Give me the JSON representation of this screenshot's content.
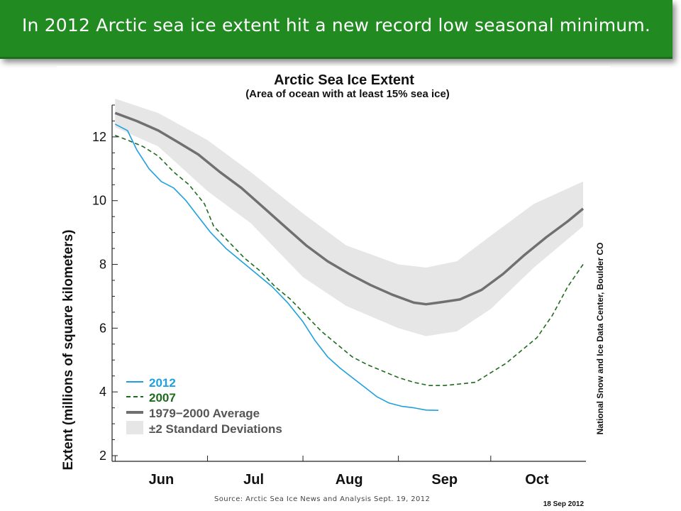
{
  "slide": {
    "title": "In 2012 Arctic sea ice extent hit a new record low seasonal minimum.",
    "source": "Source:  Arctic Sea Ice News and Analysis  Sept. 19, 2012"
  },
  "colors": {
    "banner": "#218a21",
    "series_2012": "#1ea0e0",
    "series_2007": "#1e6b1e",
    "average": "#707070",
    "std_band": "#e6e6e6"
  },
  "chart_data": {
    "type": "line",
    "title": "Arctic Sea Ice Extent",
    "subtitle": "(Area of ocean with at least 15% sea ice)",
    "ylabel": "Extent (millions of square kilometers)",
    "xlabel": "",
    "ylim": [
      2,
      13
    ],
    "xlim": [
      "May 31",
      "Oct 31"
    ],
    "yticks": [
      "2",
      "4",
      "6",
      "8",
      "10",
      "12"
    ],
    "month_labels": [
      "Jun",
      "Jul",
      "Aug",
      "Sep",
      "Oct"
    ],
    "right_caption": "National Snow and Ice Data Center, Boulder CO",
    "date_caption": "18 Sep 2012",
    "legend_position": "lower-left",
    "grid": false,
    "series": [
      {
        "name": "2012",
        "style": "solid",
        "points": [
          [
            "Jun 1",
            12.4
          ],
          [
            "Jun 5",
            12.2
          ],
          [
            "Jun 8",
            11.6
          ],
          [
            "Jun 12",
            11.0
          ],
          [
            "Jun 16",
            10.6
          ],
          [
            "Jun 20",
            10.4
          ],
          [
            "Jun 24",
            10.0
          ],
          [
            "Jun 28",
            9.5
          ],
          [
            "Jul 2",
            9.0
          ],
          [
            "Jul 7",
            8.5
          ],
          [
            "Jul 12",
            8.1
          ],
          [
            "Jul 17",
            7.7
          ],
          [
            "Jul 22",
            7.3
          ],
          [
            "Jul 27",
            6.8
          ],
          [
            "Aug 1",
            6.2
          ],
          [
            "Aug 5",
            5.6
          ],
          [
            "Aug 9",
            5.1
          ],
          [
            "Aug 13",
            4.75
          ],
          [
            "Aug 17",
            4.45
          ],
          [
            "Aug 21",
            4.15
          ],
          [
            "Aug 25",
            3.85
          ],
          [
            "Aug 29",
            3.65
          ],
          [
            "Sep 2",
            3.55
          ],
          [
            "Sep 6",
            3.5
          ],
          [
            "Sep 10",
            3.43
          ],
          [
            "Sep 14",
            3.42
          ]
        ]
      },
      {
        "name": "2007",
        "style": "dashed",
        "points": [
          [
            "Jun 1",
            12.05
          ],
          [
            "Jun 5",
            11.9
          ],
          [
            "Jun 10",
            11.7
          ],
          [
            "Jun 15",
            11.4
          ],
          [
            "Jun 20",
            10.9
          ],
          [
            "Jun 25",
            10.5
          ],
          [
            "Jun 30",
            9.9
          ],
          [
            "Jul 3",
            9.2
          ],
          [
            "Jul 8",
            8.7
          ],
          [
            "Jul 13",
            8.2
          ],
          [
            "Jul 18",
            7.8
          ],
          [
            "Jul 23",
            7.3
          ],
          [
            "Jul 28",
            6.9
          ],
          [
            "Aug 2",
            6.4
          ],
          [
            "Aug 7",
            5.9
          ],
          [
            "Aug 12",
            5.5
          ],
          [
            "Aug 17",
            5.1
          ],
          [
            "Aug 22",
            4.85
          ],
          [
            "Aug 27",
            4.65
          ],
          [
            "Sep 1",
            4.45
          ],
          [
            "Sep 6",
            4.3
          ],
          [
            "Sep 11",
            4.2
          ],
          [
            "Sep 16",
            4.2
          ],
          [
            "Sep 21",
            4.25
          ],
          [
            "Sep 26",
            4.3
          ],
          [
            "Oct 1",
            4.6
          ],
          [
            "Oct 6",
            4.9
          ],
          [
            "Oct 11",
            5.3
          ],
          [
            "Oct 16",
            5.7
          ],
          [
            "Oct 21",
            6.4
          ],
          [
            "Oct 26",
            7.3
          ],
          [
            "Oct 31",
            8.0
          ]
        ]
      },
      {
        "name": "1979−2000 Average",
        "style": "thick",
        "points": [
          [
            "Jun 1",
            12.75
          ],
          [
            "Jun 8",
            12.5
          ],
          [
            "Jun 15",
            12.2
          ],
          [
            "Jun 22",
            11.8
          ],
          [
            "Jun 28",
            11.45
          ],
          [
            "Jul 5",
            10.9
          ],
          [
            "Jul 12",
            10.4
          ],
          [
            "Jul 19",
            9.8
          ],
          [
            "Jul 26",
            9.2
          ],
          [
            "Aug 2",
            8.6
          ],
          [
            "Aug 9",
            8.1
          ],
          [
            "Aug 16",
            7.7
          ],
          [
            "Aug 23",
            7.35
          ],
          [
            "Aug 30",
            7.05
          ],
          [
            "Sep 6",
            6.8
          ],
          [
            "Sep 10",
            6.75
          ],
          [
            "Sep 14",
            6.8
          ],
          [
            "Sep 21",
            6.9
          ],
          [
            "Sep 28",
            7.2
          ],
          [
            "Oct 5",
            7.7
          ],
          [
            "Oct 12",
            8.3
          ],
          [
            "Oct 19",
            8.85
          ],
          [
            "Oct 26",
            9.35
          ],
          [
            "Oct 31",
            9.75
          ]
        ]
      }
    ],
    "band": {
      "name": "±2 Standard Deviations",
      "points": [
        [
          "Jun 1",
          13.2,
          12.3
        ],
        [
          "Jun 15",
          12.75,
          11.7
        ],
        [
          "Jul 1",
          11.9,
          10.3
        ],
        [
          "Jul 15",
          10.9,
          9.3
        ],
        [
          "Aug 1",
          9.6,
          7.6
        ],
        [
          "Aug 15",
          8.6,
          6.7
        ],
        [
          "Sep 1",
          8.0,
          6.0
        ],
        [
          "Sep 10",
          7.9,
          5.75
        ],
        [
          "Sep 20",
          8.1,
          5.9
        ],
        [
          "Oct 1",
          8.9,
          6.6
        ],
        [
          "Oct 15",
          9.9,
          7.9
        ],
        [
          "Oct 31",
          10.6,
          9.2
        ]
      ]
    }
  }
}
